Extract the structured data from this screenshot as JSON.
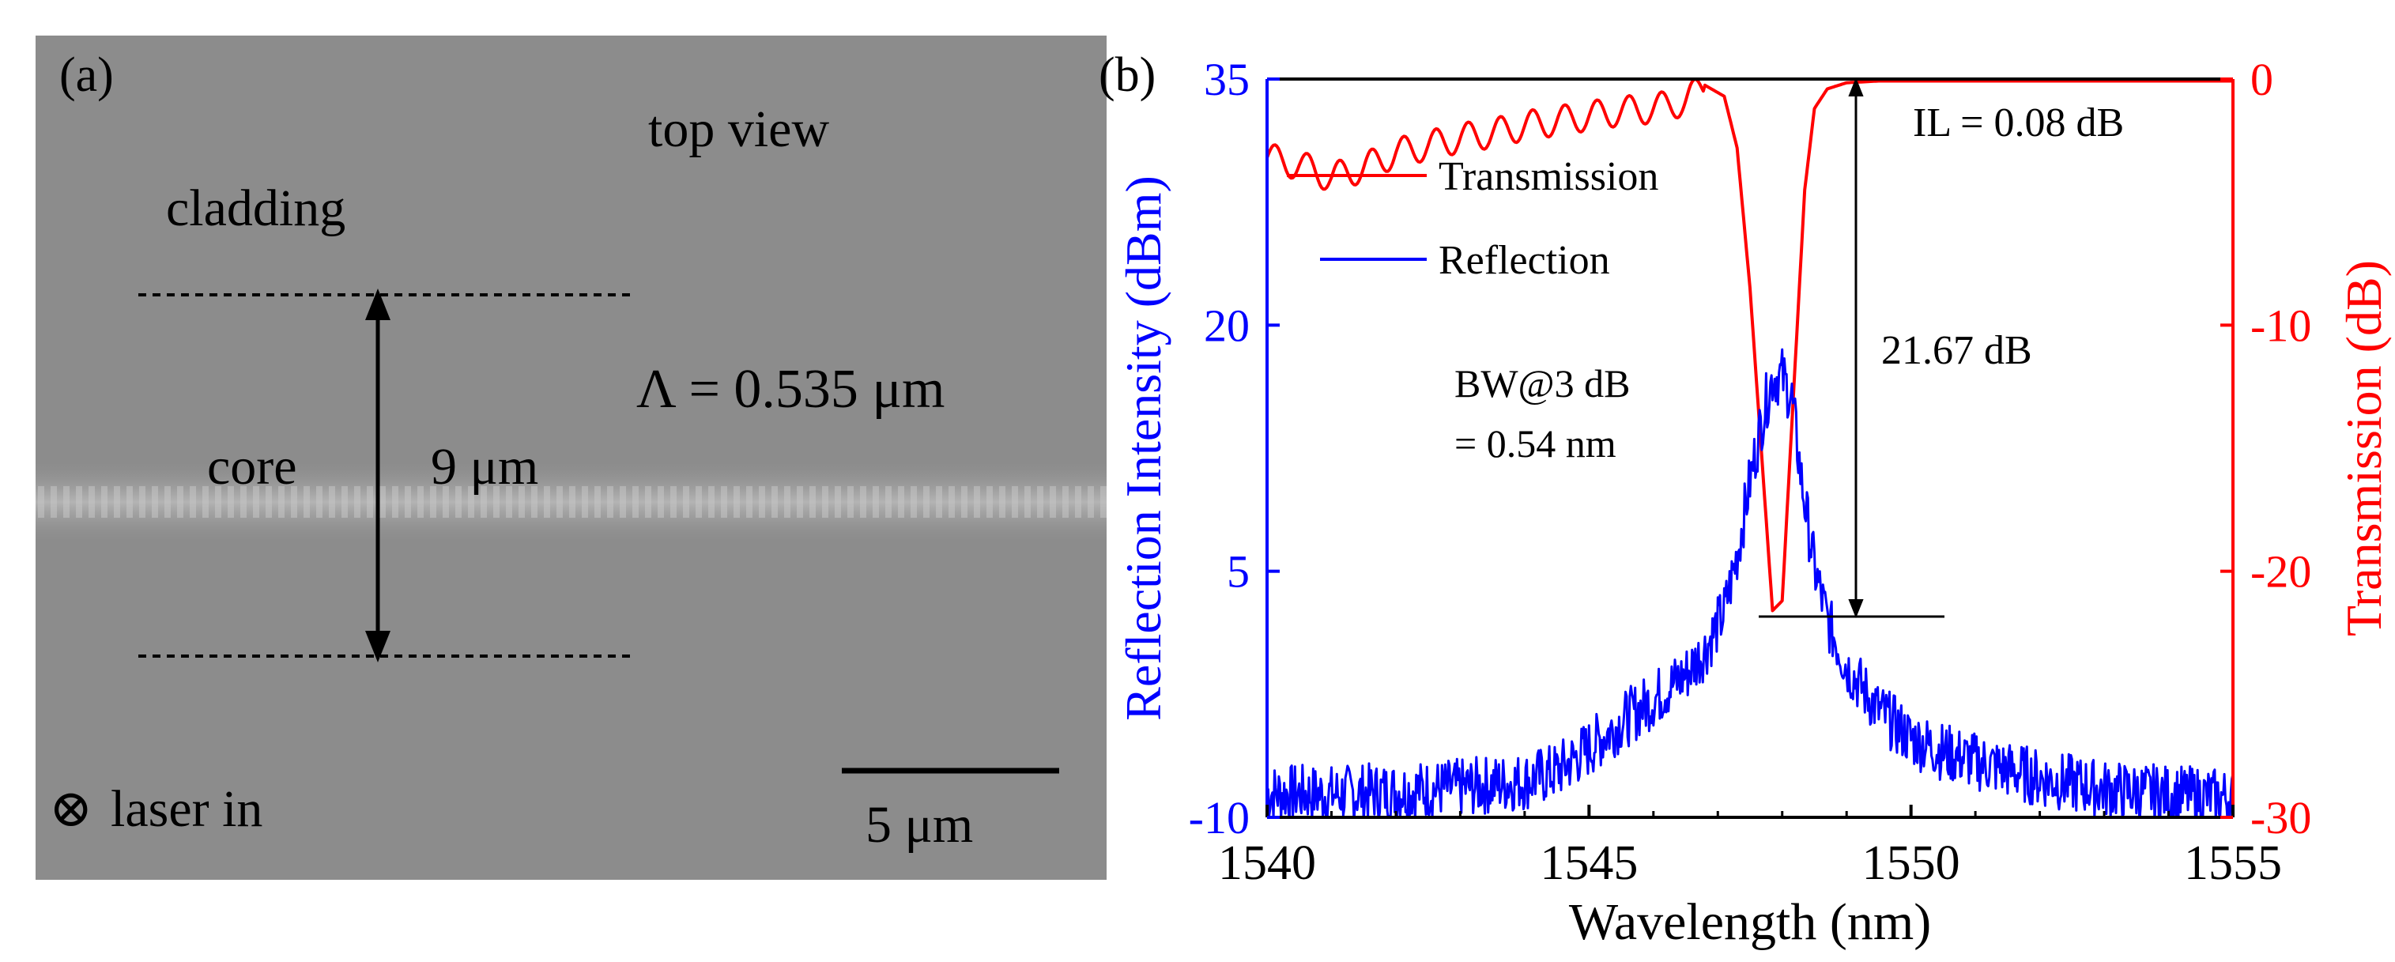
{
  "panel_a": {
    "label": "(a)",
    "view_label": "top view",
    "cladding_label": "cladding",
    "core_label": "core",
    "core_width": "9 μm",
    "period_label": "Λ = 0.535 μm",
    "scale_bar": "5 μm",
    "laser_symbol": "⊗",
    "laser_label": "laser in"
  },
  "panel_b": {
    "label": "(b)"
  },
  "chart_data": {
    "type": "line",
    "title": "",
    "xlabel": "Wavelength (nm)",
    "ylabel_left": "Reflection Intensity (dBm)",
    "ylabel_right": "Transmission (dB)",
    "xlim": [
      1540,
      1555
    ],
    "ylim_left": [
      -10,
      35
    ],
    "ylim_right": [
      -30,
      0
    ],
    "x_ticks": [
      "1540",
      "1545",
      "1550",
      "1555"
    ],
    "y_left_ticks": [
      "-10",
      "5",
      "20",
      "35"
    ],
    "y_right_ticks": [
      "-30",
      "-20",
      "-10",
      "0"
    ],
    "legend": [
      {
        "name": "Transmission",
        "color": "#ff0000"
      },
      {
        "name": "Reflection",
        "color": "#0000ff"
      }
    ],
    "series": [
      {
        "name": "Transmission",
        "axis": "right",
        "color": "#ff0000",
        "x": [
          1540.0,
          1540.5,
          1541.0,
          1541.5,
          1542.0,
          1542.5,
          1543.0,
          1543.5,
          1544.0,
          1544.5,
          1545.0,
          1545.5,
          1546.0,
          1546.5,
          1546.8,
          1547.1,
          1547.3,
          1547.5,
          1547.7,
          1547.85,
          1548.0,
          1548.15,
          1548.35,
          1548.5,
          1548.7,
          1549.0,
          1549.5,
          1550.0,
          1551.0,
          1552.0,
          1553.0,
          1554.0,
          1555.0
        ],
        "y": [
          -3.2,
          -3.5,
          -4.0,
          -3.6,
          -3.0,
          -2.7,
          -2.4,
          -2.2,
          -1.9,
          -1.7,
          -1.5,
          -1.3,
          -1.2,
          -0.9,
          -0.25,
          -0.7,
          -2.8,
          -8.5,
          -16.0,
          -21.6,
          -21.2,
          -14.0,
          -4.5,
          -1.2,
          -0.4,
          -0.15,
          -0.08,
          -0.08,
          -0.08,
          -0.08,
          -0.08,
          -0.08,
          -0.08
        ]
      },
      {
        "name": "Reflection",
        "axis": "left",
        "color": "#0000ff",
        "x": [
          1540.0,
          1541.0,
          1542.0,
          1543.0,
          1544.0,
          1544.5,
          1545.0,
          1545.5,
          1546.0,
          1546.5,
          1546.8,
          1547.1,
          1547.3,
          1547.5,
          1547.7,
          1547.85,
          1548.0,
          1548.15,
          1548.3,
          1548.5,
          1548.7,
          1549.0,
          1549.5,
          1550.0,
          1550.5,
          1551.0,
          1552.0,
          1553.0,
          1554.0,
          1555.0
        ],
        "y": [
          -8.5,
          -8.6,
          -8.4,
          -8.2,
          -7.8,
          -7.2,
          -5.8,
          -4.2,
          -2.8,
          -1.3,
          0.2,
          2.5,
          6.0,
          10.5,
          14.5,
          16.8,
          16.9,
          15.5,
          10.5,
          5.2,
          2.0,
          -0.8,
          -3.5,
          -5.2,
          -6.0,
          -6.6,
          -7.6,
          -8.3,
          -8.6,
          -8.8
        ]
      }
    ],
    "annotations": [
      {
        "text": "IL = 0.08 dB"
      },
      {
        "text": "21.67 dB"
      },
      {
        "text": "BW@3 dB"
      },
      {
        "text": "= 0.54 nm"
      }
    ]
  }
}
